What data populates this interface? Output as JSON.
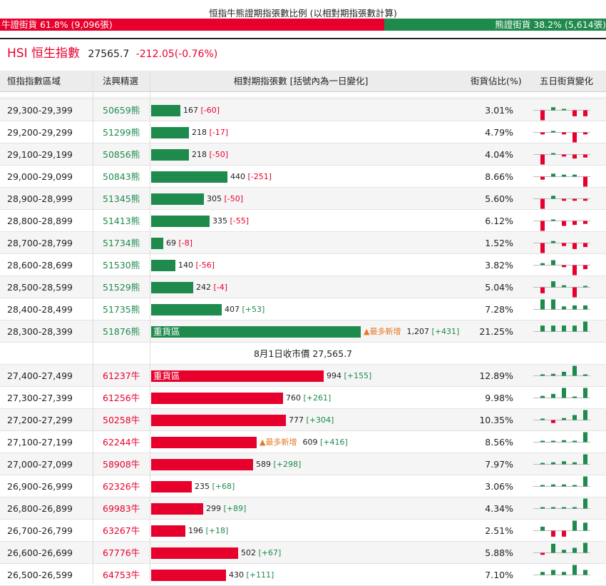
{
  "title": "恒指牛熊證期指張數比例 (以相對期指張數計算)",
  "ratio": {
    "bull_label": "牛證街貨 61.8% (9,096張)",
    "bear_label": "熊證街貨 38.2% (5,614張)",
    "bull_fraction": 0.618
  },
  "index": {
    "name": "HSI 恒生指數",
    "price": "27565.7",
    "change": "-212.05(-0.76%)"
  },
  "columns": {
    "range": "恒指指數區域",
    "code": "法興精選",
    "contracts": "相對期指張數 [括號內為一日變化]",
    "pct": "街貨佔比(%)",
    "five_day": "五日街貨變化"
  },
  "close_label": "8月1日收市價 27,565.7",
  "colors": {
    "bull": "#e8002d",
    "bear": "#1e8a4c",
    "most_new": "#e87722"
  },
  "bear_rows": [
    {
      "range": "29,300-29,399",
      "code": "50659熊",
      "value": 167,
      "value_text": "167",
      "change": "[-60]",
      "change_sign": "neg",
      "pct": "3.01%",
      "spark": [
        0,
        -1,
        0.3,
        0.1,
        -0.6,
        -0.6
      ]
    },
    {
      "range": "29,200-29,299",
      "code": "51299熊",
      "value": 218,
      "value_text": "218",
      "change": "[-17]",
      "change_sign": "neg",
      "pct": "4.79%",
      "spark": [
        -0.2,
        -0.2,
        0.15,
        -0.2,
        -1,
        -0.2
      ]
    },
    {
      "range": "29,100-29,199",
      "code": "50856熊",
      "value": 218,
      "value_text": "218",
      "change": "[-50]",
      "change_sign": "neg",
      "pct": "4.04%",
      "spark": [
        -0.2,
        -1,
        0.1,
        -0.2,
        -0.4,
        -0.3
      ]
    },
    {
      "range": "29,000-29,099",
      "code": "50843熊",
      "value": 440,
      "value_text": "440",
      "change": "[-251]",
      "change_sign": "neg",
      "pct": "8.66%",
      "spark": [
        0,
        -0.3,
        0.3,
        0.2,
        0.2,
        -1
      ]
    },
    {
      "range": "28,900-28,999",
      "code": "51345熊",
      "value": 305,
      "value_text": "305",
      "change": "[-50]",
      "change_sign": "neg",
      "pct": "5.60%",
      "spark": [
        0,
        -1,
        0.3,
        -0.2,
        -0.2,
        -0.2
      ]
    },
    {
      "range": "28,800-28,899",
      "code": "51413熊",
      "value": 335,
      "value_text": "335",
      "change": "[-55]",
      "change_sign": "neg",
      "pct": "6.12%",
      "spark": [
        0,
        -1,
        0.1,
        -0.5,
        -0.4,
        -0.3
      ]
    },
    {
      "range": "28,700-28,799",
      "code": "51734熊",
      "value": 69,
      "value_text": "69",
      "change": "[-8]",
      "change_sign": "neg",
      "pct": "1.52%",
      "spark": [
        0,
        -1,
        0.2,
        -0.3,
        -0.6,
        -0.4
      ]
    },
    {
      "range": "28,600-28,699",
      "code": "51530熊",
      "value": 140,
      "value_text": "140",
      "change": "[-56]",
      "change_sign": "neg",
      "pct": "3.82%",
      "spark": [
        0,
        0.2,
        0.5,
        -0.2,
        -1,
        -0.4
      ]
    },
    {
      "range": "28,500-28,599",
      "code": "51529熊",
      "value": 242,
      "value_text": "242",
      "change": "[-4]",
      "change_sign": "neg",
      "pct": "5.04%",
      "spark": [
        0,
        -0.6,
        0.6,
        0.2,
        -1,
        0.1
      ]
    },
    {
      "range": "28,400-28,499",
      "code": "51735熊",
      "value": 407,
      "value_text": "407",
      "change": "[+53]",
      "change_sign": "pos",
      "pct": "7.28%",
      "spark": [
        0,
        1,
        1,
        0.3,
        0.4,
        0.4
      ]
    },
    {
      "range": "28,300-28,399",
      "code": "51876熊",
      "value": 1207,
      "value_text": "1,207",
      "change": "[+431]",
      "change_sign": "pos",
      "pct": "21.25%",
      "tag": "重貨區",
      "most": "▲最多新增",
      "spark": [
        0,
        0.6,
        0.6,
        0.6,
        0.6,
        1
      ]
    }
  ],
  "bull_rows": [
    {
      "range": "27,400-27,499",
      "code": "61237牛",
      "value": 994,
      "value_text": "994",
      "change": "[+155]",
      "change_sign": "pos",
      "pct": "12.89%",
      "tag": "重貨區",
      "spark": [
        0,
        0.15,
        0.2,
        0.4,
        1,
        0.1
      ]
    },
    {
      "range": "27,300-27,399",
      "code": "61256牛",
      "value": 760,
      "value_text": "760",
      "change": "[+261]",
      "change_sign": "pos",
      "pct": "9.98%",
      "spark": [
        0,
        0.2,
        0.4,
        1,
        0.1,
        1
      ]
    },
    {
      "range": "27,200-27,299",
      "code": "50258牛",
      "value": 777,
      "value_text": "777",
      "change": "[+304]",
      "change_sign": "pos",
      "pct": "10.35%",
      "spark": [
        0,
        0.1,
        -0.3,
        0.2,
        0.5,
        1
      ]
    },
    {
      "range": "27,100-27,199",
      "code": "62244牛",
      "value": 609,
      "value_text": "609",
      "change": "[+416]",
      "change_sign": "pos",
      "pct": "8.56%",
      "most": "▲最多新增",
      "spark": [
        0,
        0.1,
        0.1,
        0.2,
        0.1,
        1
      ]
    },
    {
      "range": "27,000-27,099",
      "code": "58908牛",
      "value": 589,
      "value_text": "589",
      "change": "[+298]",
      "change_sign": "pos",
      "pct": "7.97%",
      "spark": [
        0,
        0.1,
        0.2,
        0.3,
        0.2,
        1
      ]
    },
    {
      "range": "26,900-26,999",
      "code": "62326牛",
      "value": 235,
      "value_text": "235",
      "change": "[+68]",
      "change_sign": "pos",
      "pct": "3.06%",
      "spark": [
        0,
        0.1,
        0.2,
        0.2,
        0.1,
        1
      ]
    },
    {
      "range": "26,800-26,899",
      "code": "69983牛",
      "value": 299,
      "value_text": "299",
      "change": "[+89]",
      "change_sign": "pos",
      "pct": "4.34%",
      "spark": [
        0,
        0.1,
        0.1,
        0.1,
        0.1,
        1
      ]
    },
    {
      "range": "26,700-26,799",
      "code": "63267牛",
      "value": 196,
      "value_text": "196",
      "change": "[+18]",
      "change_sign": "pos",
      "pct": "2.51%",
      "spark": [
        0,
        0.4,
        -0.6,
        -0.6,
        1,
        0.8
      ]
    },
    {
      "range": "26,600-26,699",
      "code": "67776牛",
      "value": 502,
      "value_text": "502",
      "change": "[+67]",
      "change_sign": "pos",
      "pct": "5.88%",
      "spark": [
        0,
        -0.2,
        0.9,
        0.3,
        0.5,
        1
      ]
    },
    {
      "range": "26,500-26,599",
      "code": "64753牛",
      "value": 430,
      "value_text": "430",
      "change": "[+111]",
      "change_sign": "pos",
      "pct": "7.10%",
      "spark": [
        0,
        0.3,
        0.5,
        0.3,
        1,
        0.5
      ]
    }
  ]
}
